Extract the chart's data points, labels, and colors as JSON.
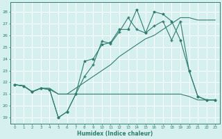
{
  "x": [
    0,
    1,
    2,
    3,
    4,
    5,
    6,
    7,
    8,
    9,
    10,
    11,
    12,
    13,
    14,
    15,
    16,
    17,
    18,
    19,
    20,
    21,
    22,
    23
  ],
  "line_flat": [
    21.8,
    21.7,
    21.2,
    21.5,
    21.4,
    21.0,
    21.0,
    21.0,
    21.0,
    21.0,
    21.0,
    21.0,
    21.0,
    21.0,
    21.0,
    21.0,
    21.0,
    21.0,
    21.0,
    21.0,
    20.8,
    20.5,
    20.5,
    20.5
  ],
  "line_zigzag": [
    21.8,
    21.7,
    21.2,
    21.5,
    21.4,
    19.0,
    19.5,
    21.0,
    23.8,
    24.0,
    25.2,
    25.4,
    26.5,
    26.5,
    28.2,
    26.2,
    28.0,
    27.8,
    27.2,
    25.6,
    23.0,
    20.8,
    20.5,
    20.5
  ],
  "line_curve": [
    21.8,
    21.7,
    21.2,
    21.5,
    21.4,
    19.0,
    19.5,
    21.0,
    22.5,
    23.5,
    25.5,
    25.3,
    26.3,
    27.5,
    26.5,
    26.2,
    26.8,
    27.2,
    25.6,
    27.2,
    23.0,
    20.8,
    20.5,
    20.5
  ],
  "line_trend": [
    21.8,
    21.7,
    21.2,
    21.5,
    21.5,
    21.0,
    21.0,
    21.5,
    22.0,
    22.5,
    23.0,
    23.5,
    24.2,
    24.7,
    25.2,
    25.7,
    26.0,
    26.5,
    27.0,
    27.5,
    27.5,
    27.3,
    27.3,
    27.3
  ],
  "color": "#2E7D6E",
  "bg_color": "#D6EFEF",
  "grid_color": "#FFFFFF",
  "yticks": [
    19,
    20,
    21,
    22,
    23,
    24,
    25,
    26,
    27,
    28
  ],
  "xticks": [
    0,
    1,
    2,
    3,
    4,
    5,
    6,
    7,
    8,
    9,
    10,
    11,
    12,
    13,
    14,
    15,
    16,
    17,
    18,
    19,
    20,
    21,
    22,
    23
  ],
  "xlabel": "Humidex (Indice chaleur)",
  "ylim": [
    18.5,
    28.8
  ],
  "xlim": [
    -0.5,
    23.5
  ]
}
